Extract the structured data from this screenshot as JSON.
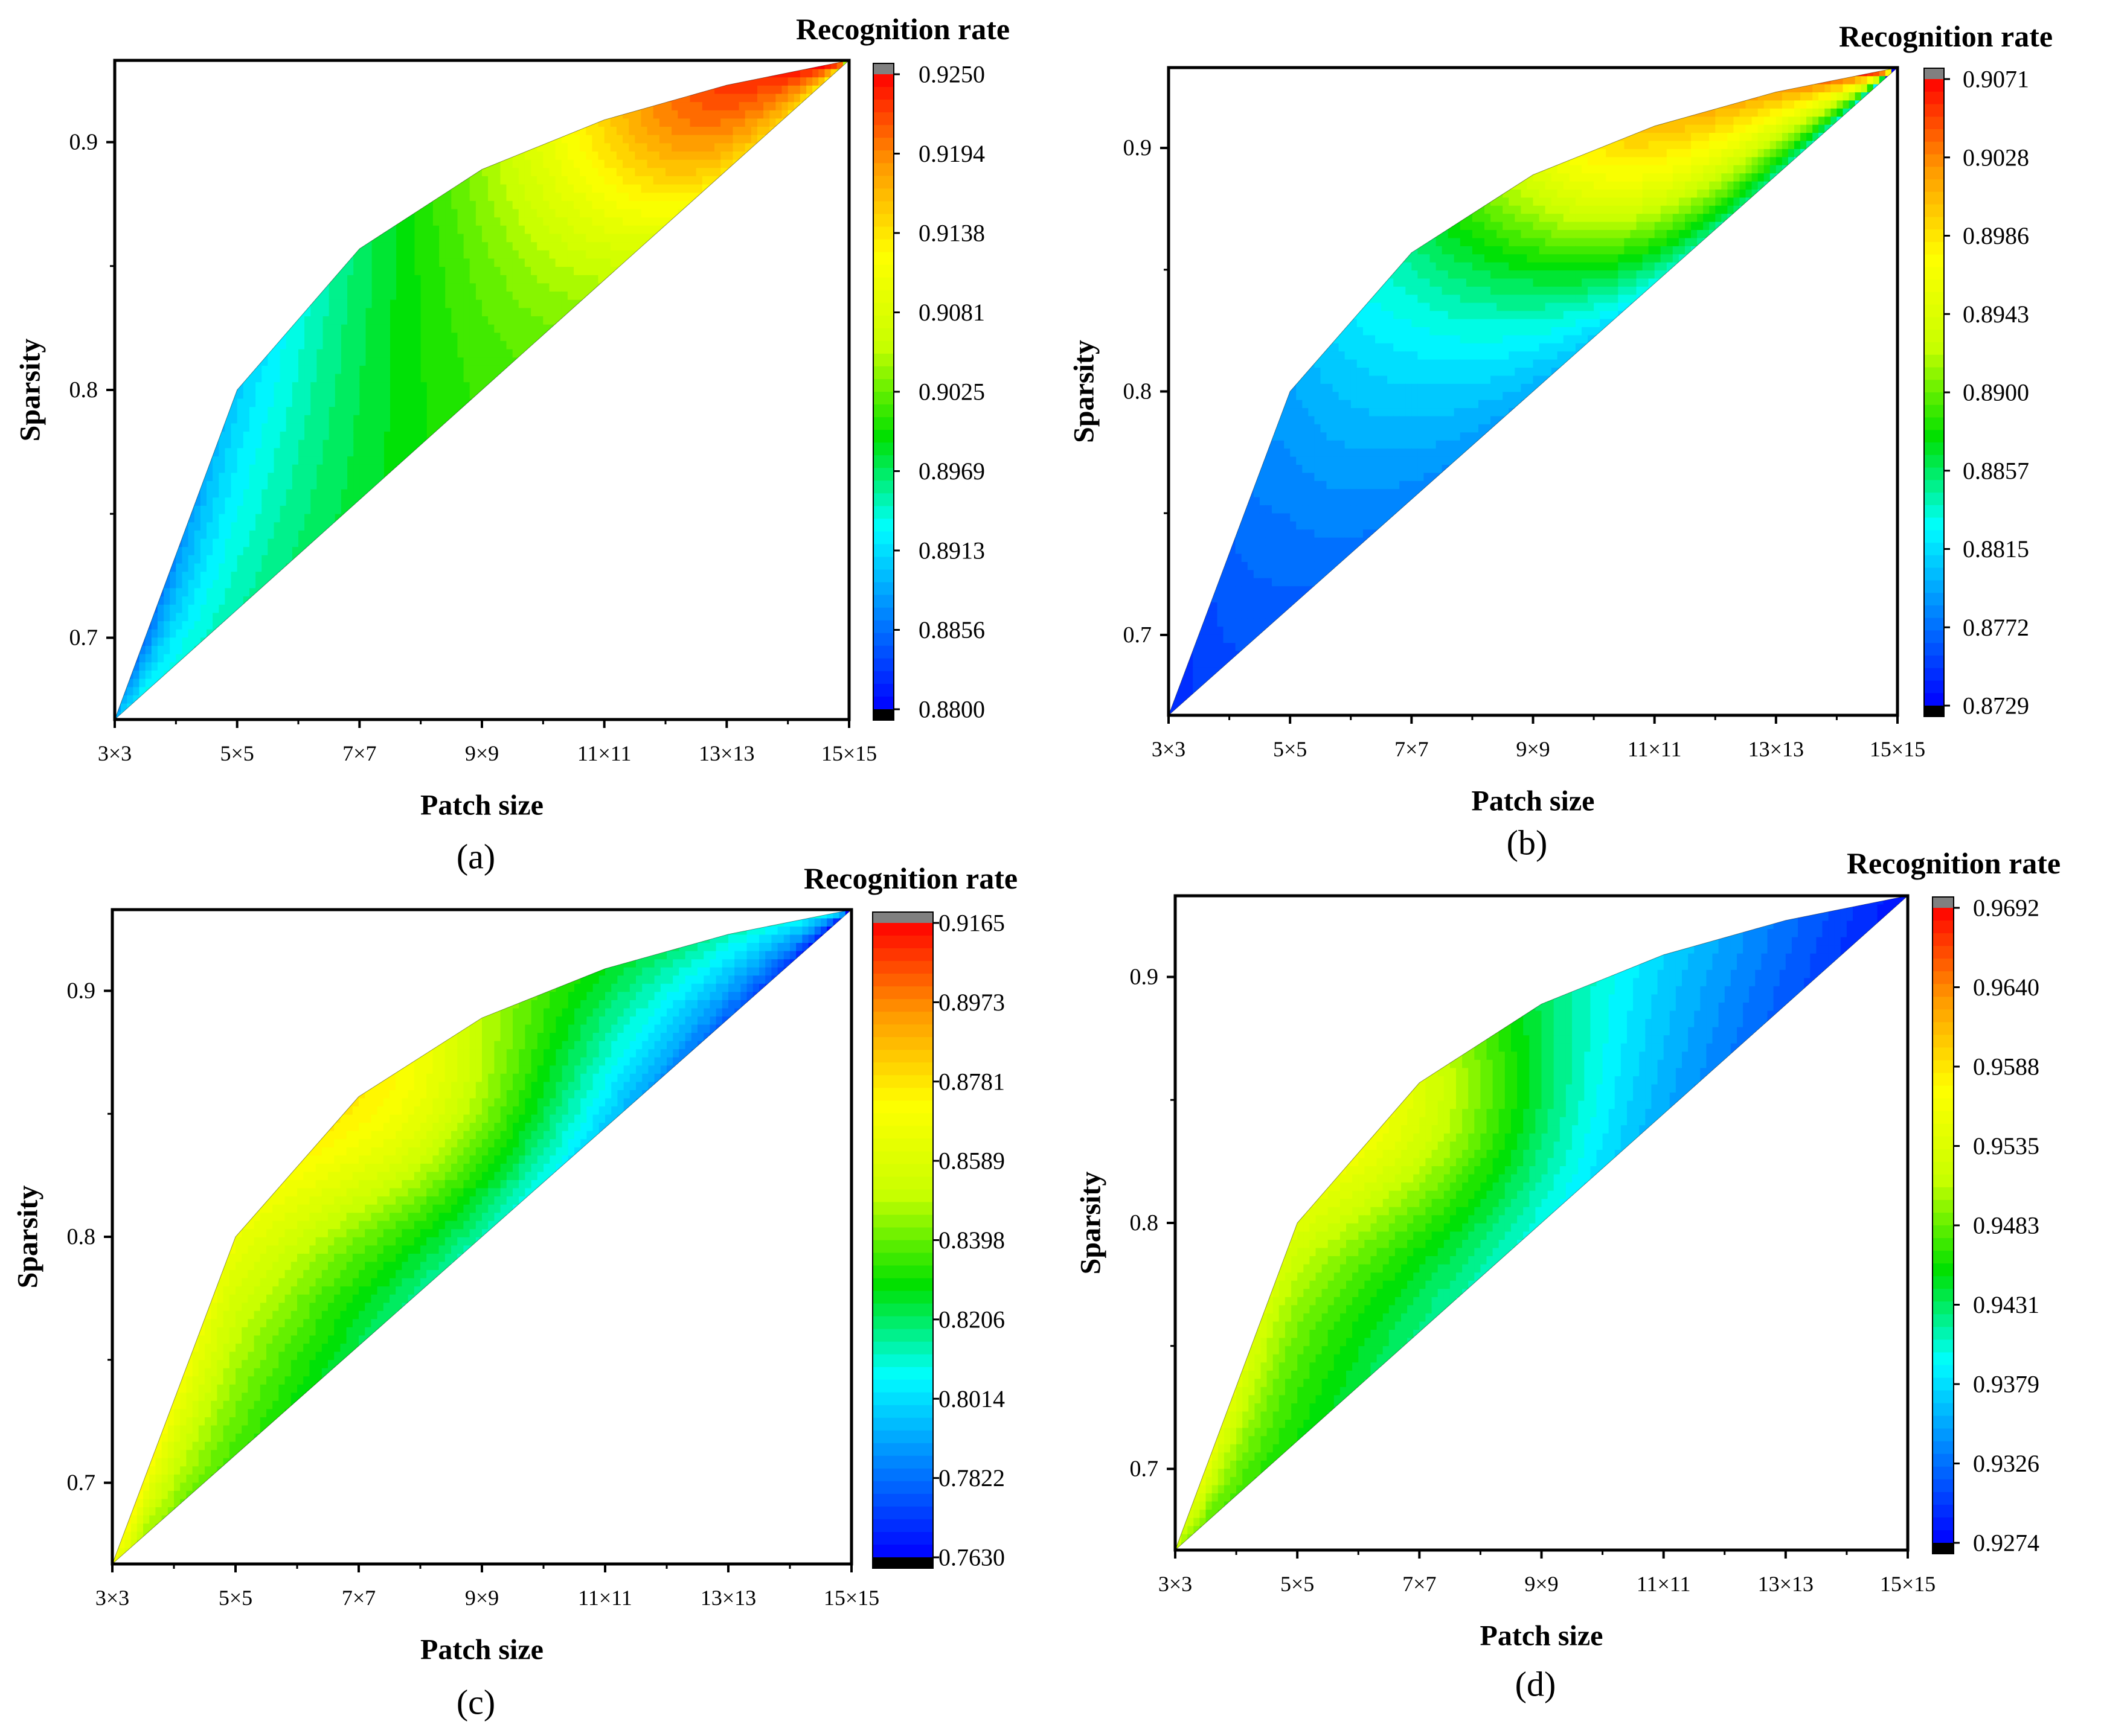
{
  "colors": {
    "scale": [
      "#0000ff",
      "#0080ff",
      "#00ffff",
      "#00e000",
      "#c8ff00",
      "#ffff00",
      "#ff9900",
      "#ff0000"
    ],
    "over": "#808080",
    "under": "#000000",
    "fill_boundary": "#000000"
  },
  "chart_data": [
    {
      "type": "contour",
      "panel_label": "(a)",
      "title": "Recognition rate",
      "xlabel": "Patch size",
      "ylabel": "Sparsity",
      "x_ticks": [
        "3×3",
        "5×5",
        "7×7",
        "9×9",
        "11×11",
        "13×13",
        "15×15"
      ],
      "y_ticks": [
        "0.7",
        "0.8",
        "0.9"
      ],
      "xlim": [
        3,
        15
      ],
      "ylim": [
        0.667,
        0.933
      ],
      "colorbar_ticks": [
        "0.9250",
        "0.9194",
        "0.9138",
        "0.9081",
        "0.9025",
        "0.8969",
        "0.8913",
        "0.8856",
        "0.8800"
      ],
      "zlim": [
        0.88,
        0.925
      ],
      "boundary_upper": [
        [
          3,
          0.667
        ],
        [
          5,
          0.8
        ],
        [
          7,
          0.857
        ],
        [
          9,
          0.889
        ],
        [
          11,
          0.909
        ],
        [
          13,
          0.923
        ],
        [
          15,
          0.933
        ]
      ],
      "boundary_lower": [
        [
          3,
          0.667
        ],
        [
          15,
          0.933
        ]
      ],
      "hotspot": [
        12.6,
        0.905
      ],
      "z_corner_3": 0.8895,
      "z_upper_start": 0.884,
      "z_upper_end": 0.922,
      "z_lower_start": 0.892,
      "z_lower_end": 0.91
    },
    {
      "type": "contour",
      "panel_label": "(b)",
      "title": "Recognition rate",
      "xlabel": "Patch size",
      "ylabel": "Sparsity",
      "x_ticks": [
        "3×3",
        "5×5",
        "7×7",
        "9×9",
        "11×11",
        "13×13",
        "15×15"
      ],
      "y_ticks": [
        "0.7",
        "0.8",
        "0.9"
      ],
      "xlim": [
        3,
        15
      ],
      "ylim": [
        0.667,
        0.933
      ],
      "colorbar_ticks": [
        "0.9071",
        "0.9028",
        "0.8986",
        "0.8943",
        "0.8900",
        "0.8857",
        "0.8815",
        "0.8772",
        "0.8729"
      ],
      "zlim": [
        0.8729,
        0.9071
      ],
      "boundary_upper": [
        [
          3,
          0.667
        ],
        [
          5,
          0.8
        ],
        [
          7,
          0.857
        ],
        [
          9,
          0.889
        ],
        [
          11,
          0.909
        ],
        [
          13,
          0.923
        ],
        [
          15,
          0.933
        ]
      ],
      "boundary_lower": [
        [
          3,
          0.667
        ],
        [
          15,
          0.933
        ]
      ],
      "hotspot": [
        10.5,
        0.895
      ],
      "z_corner_3": 0.8745,
      "z_upper_start": 0.874,
      "z_upper_end": 0.905,
      "z_lower_start": 0.875,
      "z_lower_end": 0.884
    },
    {
      "type": "contour",
      "panel_label": "(c)",
      "title": "Recognition rate",
      "xlabel": "Patch size",
      "ylabel": "Sparsity",
      "x_ticks": [
        "3×3",
        "5×5",
        "7×7",
        "9×9",
        "11×11",
        "13×13",
        "15×15"
      ],
      "y_ticks": [
        "0.7",
        "0.8",
        "0.9"
      ],
      "xlim": [
        3,
        15
      ],
      "ylim": [
        0.667,
        0.933
      ],
      "colorbar_ticks": [
        "0.9165",
        "0.8973",
        "0.8781",
        "0.8589",
        "0.8398",
        "0.8206",
        "0.8014",
        "0.7822",
        "0.7630"
      ],
      "zlim": [
        0.763,
        0.9165
      ],
      "boundary_upper": [
        [
          3,
          0.667
        ],
        [
          5,
          0.8
        ],
        [
          7,
          0.857
        ],
        [
          9,
          0.889
        ],
        [
          11,
          0.909
        ],
        [
          13,
          0.923
        ],
        [
          15,
          0.933
        ]
      ],
      "boundary_lower": [
        [
          3,
          0.667
        ],
        [
          15,
          0.933
        ]
      ],
      "hotspot": [
        7.5,
        0.855
      ],
      "z_corner_3": 0.868,
      "z_upper_start": 0.875,
      "z_upper_end": 0.8,
      "z_lower_start": 0.85,
      "z_lower_end": 0.765
    },
    {
      "type": "contour",
      "panel_label": "(d)",
      "title": "Recognition rate",
      "xlabel": "Patch size",
      "ylabel": "Sparsity",
      "x_ticks": [
        "3×3",
        "5×5",
        "7×7",
        "9×9",
        "11×11",
        "13×13",
        "15×15"
      ],
      "y_ticks": [
        "0.7",
        "0.8",
        "0.9"
      ],
      "xlim": [
        3,
        15
      ],
      "ylim": [
        0.667,
        0.933
      ],
      "colorbar_ticks": [
        "0.9692",
        "0.9640",
        "0.9588",
        "0.9535",
        "0.9483",
        "0.9431",
        "0.9379",
        "0.9326",
        "0.9274"
      ],
      "zlim": [
        0.9274,
        0.9692
      ],
      "boundary_upper": [
        [
          3,
          0.667
        ],
        [
          5,
          0.8
        ],
        [
          7,
          0.857
        ],
        [
          9,
          0.889
        ],
        [
          11,
          0.909
        ],
        [
          13,
          0.923
        ],
        [
          15,
          0.933
        ]
      ],
      "boundary_lower": [
        [
          3,
          0.667
        ],
        [
          15,
          0.933
        ]
      ],
      "hotspot": [
        6.5,
        0.845
      ],
      "z_corner_3": 0.951,
      "z_upper_start": 0.956,
      "z_upper_end": 0.928,
      "z_lower_start": 0.949,
      "z_lower_end": 0.928
    }
  ]
}
